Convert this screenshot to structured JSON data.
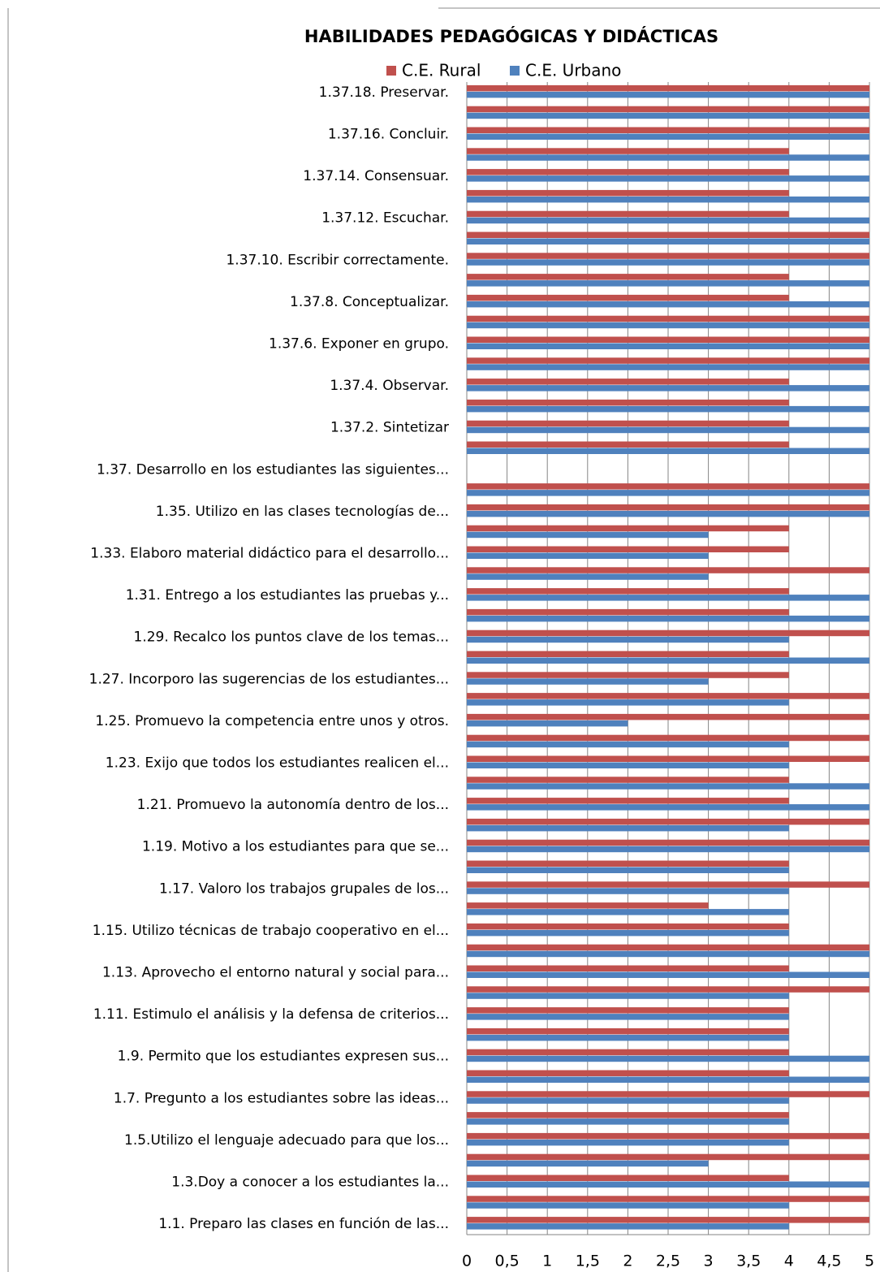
{
  "chart_data": {
    "type": "hbar",
    "title": "HABILIDADES PEDAGÓGICAS Y DIDÁCTICAS",
    "categories": [
      "1.1. Preparo las clases en función de las...",
      null,
      "1.3.Doy a conocer a los estudiantes la...",
      null,
      "1.5.Utilizo el lenguaje adecuado para que los...",
      null,
      "1.7.  Pregunto a los estudiantes sobre las ideas...",
      null,
      "1.9.  Permito que los estudiantes expresen sus...",
      null,
      "1.11.  Estimulo el análisis y la defensa de criterios...",
      null,
      "1.13.  Aprovecho el entorno natural y social para...",
      null,
      "1.15.  Utilizo técnicas de trabajo cooperativo en el...",
      null,
      "1.17.  Valoro los trabajos grupales de los...",
      null,
      "1.19.  Motivo  a los estudiantes para que se...",
      null,
      "1.21.  Promuevo la autonomía dentro de los...",
      null,
      "1.23.  Exijo que todos los estudiantes realicen el...",
      null,
      "1.25.  Promuevo la competencia entre unos y otros.",
      null,
      "1.27.  Incorporo las sugerencias de los estudiantes...",
      null,
      "1.29.  Recalco los puntos clave de los temas...",
      null,
      "1.31.  Entrego a los estudiantes las pruebas y...",
      null,
      "1.33.  Elaboro material didáctico para el desarrollo...",
      null,
      "1.35.  Utilizo en las clases tecnologías de...",
      null,
      "1.37.  Desarrollo en los estudiantes las siguientes...",
      null,
      "1.37.2.   Sintetizar",
      null,
      "1.37.4.   Observar.",
      null,
      "1.37.6.  Exponer en grupo.",
      null,
      "1.37.8.   Conceptualizar.",
      null,
      "1.37.10.  Escribir correctamente.",
      null,
      "1.37.12.  Escuchar.",
      null,
      "1.37.14.  Consensuar.",
      null,
      "1.37.16.  Concluir.",
      null,
      "1.37.18.  Preservar."
    ],
    "series": [
      {
        "name": "C.E. Rural",
        "color": "#c0504d",
        "values": [
          5,
          5,
          4,
          5,
          5,
          4,
          5,
          4,
          4,
          4,
          4,
          5,
          4,
          5,
          4,
          3,
          5,
          4,
          5,
          5,
          4,
          4,
          5,
          5,
          5,
          5,
          4,
          4,
          5,
          4,
          4,
          5,
          4,
          4,
          5,
          5,
          null,
          4,
          4,
          4,
          4,
          5,
          5,
          5,
          4,
          4,
          5,
          5,
          4,
          4,
          4,
          4,
          5,
          5,
          5
        ]
      },
      {
        "name": "C.E. Urbano",
        "color": "#4f81bd",
        "values": [
          4,
          4,
          5,
          3,
          4,
          4,
          4,
          5,
          5,
          4,
          4,
          4,
          5,
          5,
          4,
          4,
          4,
          4,
          5,
          4,
          5,
          5,
          4,
          4,
          2,
          4,
          3,
          5,
          4,
          5,
          5,
          3,
          3,
          3,
          5,
          5,
          null,
          5,
          5,
          5,
          5,
          5,
          5,
          5,
          5,
          5,
          5,
          5,
          5,
          5,
          5,
          5,
          5,
          5,
          5
        ]
      }
    ],
    "xlim": [
      0,
      5
    ],
    "xticks": [
      0,
      {
        "value": 0.5,
        "label": "0,5"
      },
      1,
      {
        "value": 1.5,
        "label": "1,5"
      },
      2,
      {
        "value": 2.5,
        "label": "2,5"
      },
      3,
      {
        "value": 3.5,
        "label": "3,5"
      },
      4,
      {
        "value": 4.5,
        "label": "4,5"
      },
      5
    ],
    "grid": true
  }
}
